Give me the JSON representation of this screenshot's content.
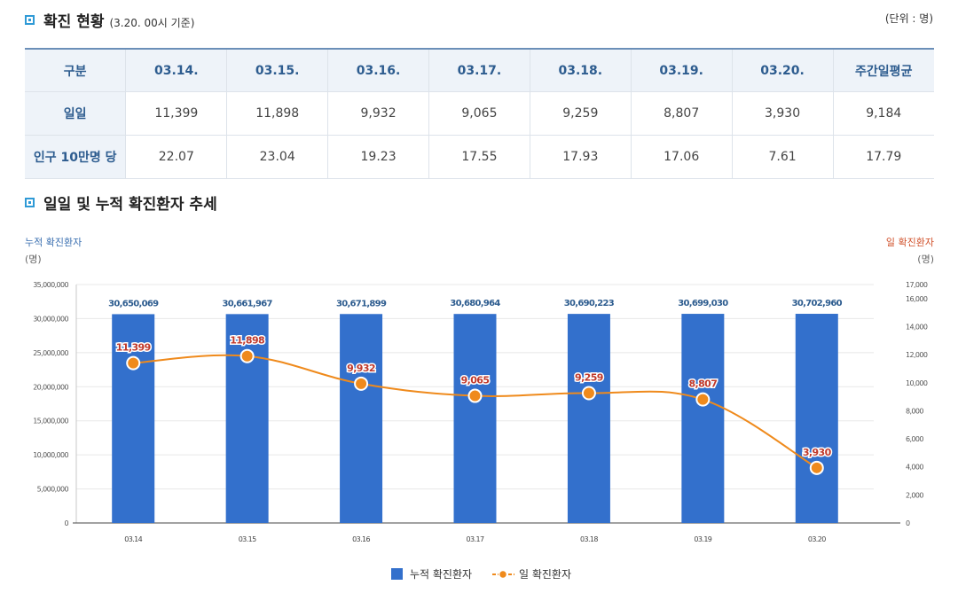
{
  "section1": {
    "title": "확진 현황",
    "basis": "(3.20. 00시 기준)",
    "unit": "(단위 : 명)"
  },
  "table": {
    "headers": [
      "구분",
      "03.14.",
      "03.15.",
      "03.16.",
      "03.17.",
      "03.18.",
      "03.19.",
      "03.20.",
      "주간일평균"
    ],
    "rows": [
      {
        "label": "일일",
        "values": [
          "11,399",
          "11,898",
          "9,932",
          "9,065",
          "9,259",
          "8,807",
          "3,930",
          "9,184"
        ]
      },
      {
        "label": "인구 10만명 당",
        "values": [
          "22.07",
          "23.04",
          "19.23",
          "17.55",
          "17.93",
          "17.06",
          "7.61",
          "17.79"
        ]
      }
    ]
  },
  "section2": {
    "title": "일일 및 누적 확진환자 추세"
  },
  "chart_data": {
    "type": "bar",
    "categories": [
      "03.14",
      "03.15",
      "03.16",
      "03.17",
      "03.18",
      "03.19",
      "03.20"
    ],
    "series": [
      {
        "name": "누적 확진환자",
        "type": "bar",
        "axis": "left",
        "color": "#3370cc",
        "values": [
          30650069,
          30661967,
          30671899,
          30680964,
          30690223,
          30699030,
          30702960
        ],
        "labels": [
          "30,650,069",
          "30,661,967",
          "30,671,899",
          "30,680,964",
          "30,690,223",
          "30,699,030",
          "30,702,960"
        ]
      },
      {
        "name": "일 확진환자",
        "type": "line",
        "axis": "right",
        "color": "#ef8a1c",
        "values": [
          11399,
          11898,
          9932,
          9065,
          9259,
          8807,
          3930
        ],
        "labels": [
          "11,399",
          "11,898",
          "9,932",
          "9,065",
          "9,259",
          "8,807",
          "3,930"
        ]
      }
    ],
    "ylabel_left": "누적 확진환자",
    "ylabel_left_unit": "(명)",
    "ylabel_right": "일 확진환자",
    "ylabel_right_unit": "(명)",
    "ylim_left": [
      0,
      35000000
    ],
    "yticks_left": [
      "0",
      "5,000,000",
      "10,000,000",
      "15,000,000",
      "20,000,000",
      "25,000,000",
      "30,000,000",
      "35,000,000"
    ],
    "ylim_right": [
      0,
      17000
    ],
    "yticks_right": [
      "0",
      "2,000",
      "4,000",
      "6,000",
      "8,000",
      "10,000",
      "12,000",
      "14,000",
      "16,000",
      "17,000"
    ],
    "grid": true,
    "legend": "bottom-center",
    "colors": {
      "left_axis_label": "#3a6fb0",
      "right_axis_label": "#d0502a",
      "bar_label": "#2d5c8f",
      "line_label": "#c0392b"
    }
  }
}
